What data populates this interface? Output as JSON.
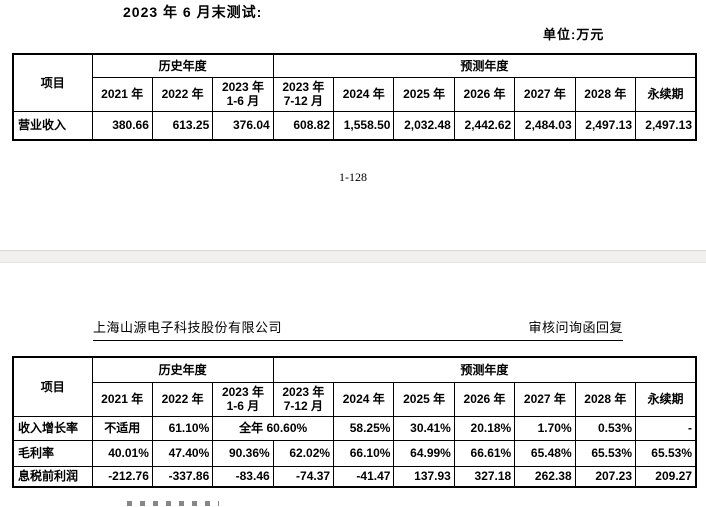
{
  "doc": {
    "heading": "2023 年 6 月末测试:",
    "unit_label": "单位:万元",
    "page_number": "1-128",
    "page2_header_left": "上海山源电子科技股份有限公司",
    "page2_header_right": "审核问询函回复"
  },
  "table_header": {
    "item": "项目",
    "groups": [
      {
        "label": "历史年度",
        "span": 3
      },
      {
        "label": "预测年度",
        "span": 7
      }
    ],
    "columns": [
      "2021 年",
      "2022 年",
      "2023 年\n1-6 月",
      "2023 年\n7-12 月",
      "2024 年",
      "2025 年",
      "2026 年",
      "2027 年",
      "2028 年",
      "永续期"
    ]
  },
  "table1": {
    "rows": [
      {
        "label": "营业收入",
        "cells": [
          {
            "t": "380.66"
          },
          {
            "t": "613.25"
          },
          {
            "t": "376.04"
          },
          {
            "t": "608.82"
          },
          {
            "t": "1,558.50"
          },
          {
            "t": "2,032.48"
          },
          {
            "t": "2,442.62"
          },
          {
            "t": "2,484.03"
          },
          {
            "t": "2,497.13"
          },
          {
            "t": "2,497.13"
          }
        ]
      }
    ]
  },
  "table2": {
    "rows": [
      {
        "label": "收入增长率",
        "cells": [
          {
            "t": "不适用",
            "a": "center"
          },
          {
            "t": "61.10%"
          },
          {
            "t": "全年 60.60%",
            "span": 2,
            "a": "center"
          },
          {
            "t": "58.25%"
          },
          {
            "t": "30.41%"
          },
          {
            "t": "20.18%"
          },
          {
            "t": "1.70%"
          },
          {
            "t": "0.53%"
          },
          {
            "t": "-"
          }
        ]
      },
      {
        "label": "毛利率",
        "cells": [
          {
            "t": "40.01%"
          },
          {
            "t": "47.40%"
          },
          {
            "t": "90.36%"
          },
          {
            "t": "62.02%"
          },
          {
            "t": "66.10%"
          },
          {
            "t": "64.99%"
          },
          {
            "t": "66.61%"
          },
          {
            "t": "65.48%"
          },
          {
            "t": "65.53%"
          },
          {
            "t": "65.53%"
          }
        ]
      },
      {
        "label": "息税前利润",
        "cells": [
          {
            "t": "-212.76"
          },
          {
            "t": "-337.86"
          },
          {
            "t": "-83.46"
          },
          {
            "t": "-74.37"
          },
          {
            "t": "-41.47"
          },
          {
            "t": "137.93"
          },
          {
            "t": "327.18"
          },
          {
            "t": "262.38"
          },
          {
            "t": "207.23"
          },
          {
            "t": "209.27"
          }
        ]
      }
    ]
  },
  "colors": {
    "text": "#000000",
    "table_border": "#000000",
    "page_gap_bg": "#f1f0ee",
    "page_gap_border": "#d9d8d5",
    "page_bg": "#ffffff"
  }
}
